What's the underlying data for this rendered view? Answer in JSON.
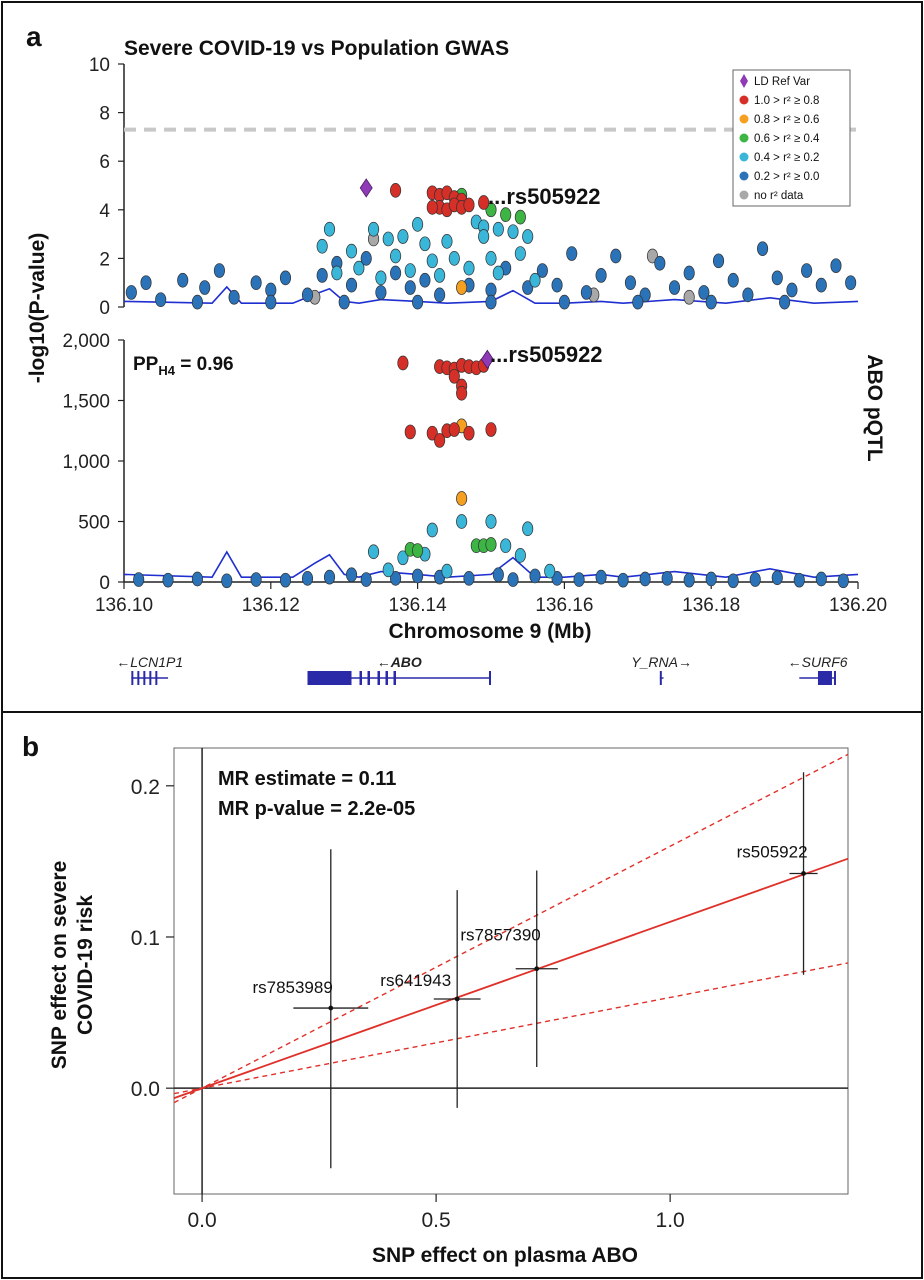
{
  "chart_data": [
    {
      "panel": "a",
      "type": "scatter",
      "title": "Severe COVID-19 vs Population GWAS",
      "xlabel": "Chromosome 9 (Mb)",
      "ylabel": "-log10(P-value)",
      "xlim": [
        136.1,
        136.2
      ],
      "x_ticks": [
        "136.10",
        "136.12",
        "136.14",
        "136.16",
        "136.18",
        "136.20"
      ],
      "top_track": {
        "ylim": [
          0,
          10
        ],
        "y_ticks": [
          "0",
          "2",
          "4",
          "6",
          "8",
          "10"
        ],
        "significance_line": 7.3,
        "lead_variant_label": "...rs505922",
        "legend": [
          {
            "label": "LD Ref Var",
            "color": "#8e3bb5",
            "shape": "diamond"
          },
          {
            "label": "1.0 > r² ≥ 0.8",
            "color": "#d62f27",
            "shape": "circle"
          },
          {
            "label": "0.8 > r² ≥ 0.6",
            "color": "#f5a020",
            "shape": "circle"
          },
          {
            "label": "0.6 > r² ≥ 0.4",
            "color": "#3cb544",
            "shape": "circle"
          },
          {
            "label": "0.4 > r² ≥ 0.2",
            "color": "#3ab6d9",
            "shape": "circle"
          },
          {
            "label": "0.2 > r² ≥ 0.0",
            "color": "#2b73b8",
            "shape": "circle"
          },
          {
            "label": "no r² data",
            "color": "#a8a8a8",
            "shape": "circle"
          }
        ],
        "points": {
          "ref": [
            [
              136.133,
              4.9
            ]
          ],
          "r08": [
            [
              136.137,
              4.8
            ],
            [
              136.142,
              4.7
            ],
            [
              136.143,
              4.6
            ],
            [
              136.144,
              4.7
            ],
            [
              136.145,
              4.5
            ],
            [
              136.146,
              4.4
            ],
            [
              136.149,
              4.3
            ],
            [
              136.143,
              4.1
            ],
            [
              136.144,
              4.0
            ],
            [
              136.145,
              4.2
            ],
            [
              136.146,
              4.1
            ],
            [
              136.147,
              4.2
            ],
            [
              136.142,
              4.1
            ]
          ],
          "r06": [
            [
              136.146,
              0.8
            ]
          ],
          "r04": [
            [
              136.146,
              4.6
            ],
            [
              136.15,
              4.0
            ],
            [
              136.152,
              3.8
            ],
            [
              136.154,
              3.7
            ]
          ],
          "r02": [
            [
              136.128,
              3.2
            ],
            [
              136.134,
              3.2
            ],
            [
              136.14,
              3.4
            ],
            [
              136.148,
              3.5
            ],
            [
              136.149,
              3.3
            ],
            [
              136.153,
              3.1
            ],
            [
              136.127,
              2.5
            ],
            [
              136.131,
              2.3
            ],
            [
              136.136,
              2.8
            ],
            [
              136.138,
              2.9
            ],
            [
              136.141,
              2.6
            ],
            [
              136.144,
              2.7
            ],
            [
              136.149,
              2.9
            ],
            [
              136.151,
              3.2
            ],
            [
              136.155,
              2.9
            ],
            [
              136.132,
              1.6
            ],
            [
              136.137,
              2.1
            ],
            [
              136.142,
              1.9
            ],
            [
              136.145,
              2.0
            ],
            [
              136.15,
              2.0
            ],
            [
              136.154,
              2.2
            ],
            [
              136.129,
              1.4
            ],
            [
              136.135,
              1.2
            ],
            [
              136.139,
              1.5
            ],
            [
              136.143,
              1.3
            ],
            [
              136.147,
              1.6
            ],
            [
              136.151,
              1.4
            ],
            [
              136.156,
              1.1
            ]
          ],
          "r00": [
            [
              136.101,
              0.6
            ],
            [
              136.103,
              1.0
            ],
            [
              136.105,
              0.3
            ],
            [
              136.108,
              1.1
            ],
            [
              136.111,
              0.8
            ],
            [
              136.113,
              1.5
            ],
            [
              136.115,
              0.4
            ],
            [
              136.118,
              1.0
            ],
            [
              136.12,
              0.7
            ],
            [
              136.122,
              1.2
            ],
            [
              136.125,
              0.5
            ],
            [
              136.127,
              1.3
            ],
            [
              136.129,
              1.8
            ],
            [
              136.131,
              0.9
            ],
            [
              136.133,
              2.0
            ],
            [
              136.135,
              0.6
            ],
            [
              136.137,
              1.4
            ],
            [
              136.139,
              0.8
            ],
            [
              136.141,
              1.1
            ],
            [
              136.143,
              0.5
            ],
            [
              136.147,
              0.9
            ],
            [
              136.15,
              0.7
            ],
            [
              136.152,
              1.6
            ],
            [
              136.155,
              0.8
            ],
            [
              136.157,
              1.5
            ],
            [
              136.159,
              0.9
            ],
            [
              136.161,
              2.2
            ],
            [
              136.163,
              0.6
            ],
            [
              136.165,
              1.3
            ],
            [
              136.167,
              2.1
            ],
            [
              136.169,
              1.0
            ],
            [
              136.171,
              0.5
            ],
            [
              136.173,
              1.8
            ],
            [
              136.175,
              0.8
            ],
            [
              136.177,
              1.4
            ],
            [
              136.179,
              0.6
            ],
            [
              136.181,
              1.9
            ],
            [
              136.183,
              1.1
            ],
            [
              136.185,
              0.5
            ],
            [
              136.187,
              2.4
            ],
            [
              136.189,
              1.2
            ],
            [
              136.191,
              0.7
            ],
            [
              136.193,
              1.5
            ],
            [
              136.195,
              0.9
            ],
            [
              136.197,
              1.7
            ],
            [
              136.199,
              1.0
            ],
            [
              136.11,
              0.2
            ],
            [
              136.12,
              0.2
            ],
            [
              136.13,
              0.2
            ],
            [
              136.14,
              0.2
            ],
            [
              136.15,
              0.2
            ],
            [
              136.16,
              0.2
            ],
            [
              136.17,
              0.2
            ],
            [
              136.18,
              0.2
            ],
            [
              136.19,
              0.2
            ]
          ],
          "none": [
            [
              136.134,
              2.8
            ],
            [
              136.126,
              0.4
            ],
            [
              136.164,
              0.5
            ],
            [
              136.172,
              2.1
            ],
            [
              136.177,
              0.4
            ]
          ]
        }
      },
      "bottom_track": {
        "ylim": [
          0,
          2000
        ],
        "y_ticks": [
          "0",
          "500",
          "1,000",
          "1,500",
          "2,000"
        ],
        "track_label": "ABO pQTL",
        "pp_label": "PP",
        "pp_sub": "H4",
        "pp_value": " = 0.96",
        "lead_variant_label": "...rs505922",
        "points": {
          "ref": [
            [
              136.1495,
              1840
            ]
          ],
          "r08": [
            [
              136.138,
              1810
            ],
            [
              136.143,
              1780
            ],
            [
              136.144,
              1770
            ],
            [
              136.145,
              1760
            ],
            [
              136.146,
              1790
            ],
            [
              136.147,
              1780
            ],
            [
              136.148,
              1770
            ],
            [
              136.149,
              1790
            ],
            [
              136.145,
              1700
            ],
            [
              136.146,
              1620
            ],
            [
              136.146,
              1560
            ],
            [
              136.139,
              1240
            ],
            [
              136.142,
              1230
            ],
            [
              136.143,
              1170
            ],
            [
              136.144,
              1250
            ],
            [
              136.145,
              1260
            ],
            [
              136.147,
              1230
            ],
            [
              136.15,
              1260
            ]
          ],
          "r06": [
            [
              136.146,
              690
            ],
            [
              136.146,
              1290
            ]
          ],
          "r04": [
            [
              136.139,
              270
            ],
            [
              136.14,
              260
            ],
            [
              136.148,
              300
            ],
            [
              136.149,
              300
            ],
            [
              136.15,
              310
            ]
          ],
          "r02": [
            [
              136.134,
              250
            ],
            [
              136.138,
              200
            ],
            [
              136.141,
              230
            ],
            [
              136.142,
              430
            ],
            [
              136.146,
              500
            ],
            [
              136.15,
              500
            ],
            [
              136.155,
              440
            ],
            [
              136.152,
              300
            ],
            [
              136.154,
              220
            ],
            [
              136.136,
              100
            ],
            [
              136.144,
              90
            ],
            [
              136.158,
              90
            ]
          ],
          "r00": [
            [
              136.102,
              20
            ],
            [
              136.106,
              15
            ],
            [
              136.11,
              25
            ],
            [
              136.114,
              10
            ],
            [
              136.118,
              20
            ],
            [
              136.122,
              15
            ],
            [
              136.125,
              30
            ],
            [
              136.128,
              40
            ],
            [
              136.131,
              60
            ],
            [
              136.133,
              20
            ],
            [
              136.137,
              30
            ],
            [
              136.14,
              50
            ],
            [
              136.143,
              40
            ],
            [
              136.147,
              30
            ],
            [
              136.151,
              60
            ],
            [
              136.153,
              20
            ],
            [
              136.156,
              50
            ],
            [
              136.159,
              30
            ],
            [
              136.162,
              20
            ],
            [
              136.165,
              40
            ],
            [
              136.168,
              15
            ],
            [
              136.171,
              25
            ],
            [
              136.174,
              30
            ],
            [
              136.177,
              15
            ],
            [
              136.18,
              25
            ],
            [
              136.183,
              10
            ],
            [
              136.186,
              20
            ],
            [
              136.189,
              35
            ],
            [
              136.192,
              15
            ],
            [
              136.195,
              25
            ],
            [
              136.198,
              10
            ]
          ]
        }
      },
      "genes": [
        {
          "name": "LCN1P1",
          "strand": "←",
          "start": 136.101,
          "end": 136.106
        },
        {
          "name": "ABO",
          "strand": "←",
          "start": 136.125,
          "end": 136.15
        },
        {
          "name": "Y_RNA",
          "strand": "→",
          "start": 136.173,
          "end": 136.1735
        },
        {
          "name": "SURF6",
          "strand": "←",
          "start": 136.192,
          "end": 136.197
        }
      ]
    },
    {
      "panel": "b",
      "type": "scatter",
      "xlabel": "SNP effect on plasma ABO",
      "ylabel_line1": "SNP effect on severe",
      "ylabel_line2": "COVID-19 risk",
      "xlim": [
        -0.06,
        1.38
      ],
      "ylim": [
        -0.07,
        0.225
      ],
      "x_ticks": [
        "0.0",
        "0.5",
        "1.0"
      ],
      "y_ticks": [
        "0.0",
        "0.1",
        "0.2"
      ],
      "annotations": [
        "MR estimate = 0.11",
        "MR p-value = 2.2e-05"
      ],
      "mr_slope": 0.11,
      "ci_slopes": [
        0.06,
        0.16
      ],
      "points": [
        {
          "label": "rs7853989",
          "x": 0.275,
          "y": 0.053,
          "x_err": 0.08,
          "y_lo": -0.053,
          "y_hi": 0.158
        },
        {
          "label": "rs641943",
          "x": 0.545,
          "y": 0.059,
          "x_err": 0.05,
          "y_lo": -0.013,
          "y_hi": 0.131
        },
        {
          "label": "rs7857390",
          "x": 0.715,
          "y": 0.079,
          "x_err": 0.045,
          "y_lo": 0.014,
          "y_hi": 0.144
        },
        {
          "label": "rs505922",
          "x": 1.285,
          "y": 0.142,
          "x_err": 0.03,
          "y_lo": 0.075,
          "y_hi": 0.209
        }
      ]
    }
  ]
}
